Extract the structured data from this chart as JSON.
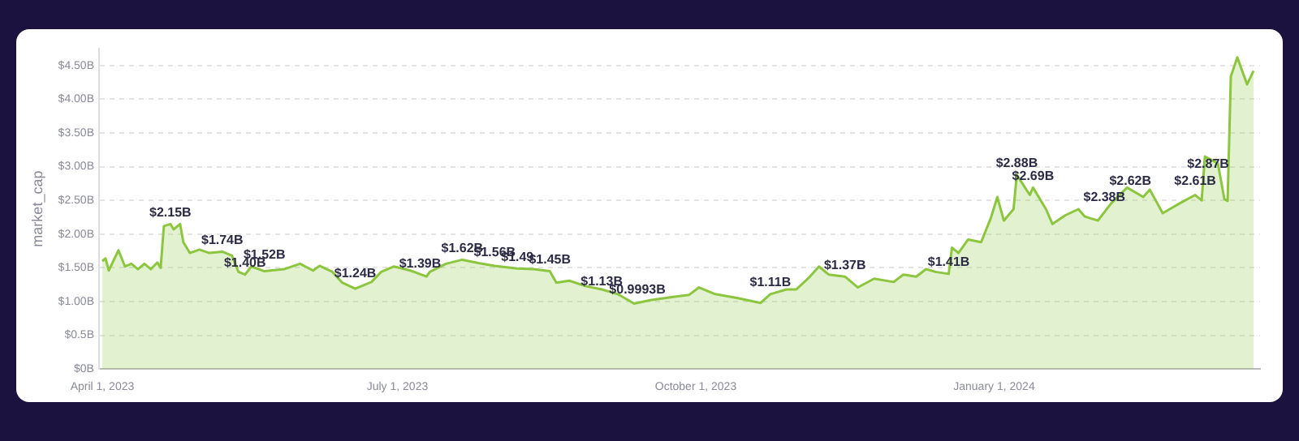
{
  "chart_data": {
    "type": "area",
    "ylabel": "market_cap",
    "x": [
      "2023-04-01",
      "2023-04-02",
      "2023-04-03",
      "2023-04-04",
      "2023-04-06",
      "2023-04-08",
      "2023-04-10",
      "2023-04-12",
      "2023-04-14",
      "2023-04-16",
      "2023-04-18",
      "2023-04-19",
      "2023-04-20",
      "2023-04-22",
      "2023-04-23",
      "2023-04-25",
      "2023-04-26",
      "2023-04-28",
      "2023-05-01",
      "2023-05-04",
      "2023-05-08",
      "2023-05-11",
      "2023-05-13",
      "2023-05-15",
      "2023-05-17",
      "2023-05-21",
      "2023-05-27",
      "2023-06-01",
      "2023-06-05",
      "2023-06-07",
      "2023-06-11",
      "2023-06-14",
      "2023-06-18",
      "2023-06-23",
      "2023-06-26",
      "2023-06-30",
      "2023-07-05",
      "2023-07-10",
      "2023-07-11",
      "2023-07-16",
      "2023-07-21",
      "2023-07-26",
      "2023-07-31",
      "2023-08-07",
      "2023-08-12",
      "2023-08-17",
      "2023-08-19",
      "2023-08-23",
      "2023-08-28",
      "2023-09-02",
      "2023-09-07",
      "2023-09-12",
      "2023-09-17",
      "2023-09-24",
      "2023-09-29",
      "2023-10-02",
      "2023-10-07",
      "2023-10-14",
      "2023-10-21",
      "2023-10-24",
      "2023-10-29",
      "2023-11-01",
      "2023-11-05",
      "2023-11-08",
      "2023-11-11",
      "2023-11-16",
      "2023-11-20",
      "2023-11-25",
      "2023-12-01",
      "2023-12-04",
      "2023-12-08",
      "2023-12-11",
      "2023-12-14",
      "2023-12-18",
      "2023-12-19",
      "2023-12-21",
      "2023-12-24",
      "2023-12-28",
      "2023-12-31",
      "2024-01-02",
      "2024-01-04",
      "2024-01-07",
      "2024-01-08",
      "2024-01-12",
      "2024-01-13",
      "2024-01-17",
      "2024-01-19",
      "2024-01-23",
      "2024-01-27",
      "2024-01-29",
      "2024-02-02",
      "2024-02-06",
      "2024-02-11",
      "2024-02-16",
      "2024-02-18",
      "2024-02-22",
      "2024-02-27",
      "2024-03-03",
      "2024-03-05",
      "2024-03-06",
      "2024-03-10",
      "2024-03-12",
      "2024-03-13",
      "2024-03-14",
      "2024-03-16",
      "2024-03-19",
      "2024-03-21"
    ],
    "series": [
      {
        "color": "#8cc63f",
        "values": [
          1.6,
          1.64,
          1.46,
          1.56,
          1.76,
          1.52,
          1.56,
          1.48,
          1.56,
          1.48,
          1.58,
          1.5,
          2.12,
          2.15,
          2.07,
          2.15,
          1.88,
          1.72,
          1.77,
          1.72,
          1.74,
          1.68,
          1.44,
          1.4,
          1.52,
          1.45,
          1.48,
          1.56,
          1.46,
          1.53,
          1.44,
          1.28,
          1.19,
          1.29,
          1.44,
          1.52,
          1.46,
          1.37,
          1.44,
          1.56,
          1.62,
          1.57,
          1.53,
          1.49,
          1.48,
          1.45,
          1.28,
          1.31,
          1.23,
          1.18,
          1.11,
          0.97,
          1.02,
          1.07,
          1.1,
          1.21,
          1.11,
          1.05,
          0.98,
          1.11,
          1.18,
          1.18,
          1.36,
          1.52,
          1.4,
          1.37,
          1.21,
          1.34,
          1.29,
          1.4,
          1.37,
          1.48,
          1.44,
          1.41,
          1.8,
          1.72,
          1.92,
          1.88,
          2.24,
          2.55,
          2.2,
          2.37,
          2.88,
          2.58,
          2.69,
          2.37,
          2.15,
          2.28,
          2.37,
          2.26,
          2.2,
          2.45,
          2.69,
          2.55,
          2.66,
          2.31,
          2.45,
          2.58,
          2.5,
          3.15,
          3.05,
          2.52,
          2.49,
          4.34,
          4.62,
          4.22,
          4.42
        ]
      }
    ],
    "xlim": [
      "2023-03-31",
      "2024-03-23"
    ],
    "xticks": [
      {
        "value": "2023-04-01",
        "label": "April 1, 2023"
      },
      {
        "value": "2023-07-01",
        "label": "July 1, 2023"
      },
      {
        "value": "2023-10-01",
        "label": "October 1, 2023"
      },
      {
        "value": "2024-01-01",
        "label": "January 1, 2024"
      }
    ],
    "ylim": [
      0,
      4.75
    ],
    "yticks": [
      {
        "value": 0,
        "label": "$0B"
      },
      {
        "value": 0.5,
        "label": "$0.5B"
      },
      {
        "value": 1,
        "label": "$1.00B"
      },
      {
        "value": 1.5,
        "label": "$1.50B"
      },
      {
        "value": 2,
        "label": "$2.00B"
      },
      {
        "value": 2.5,
        "label": "$2.50B"
      },
      {
        "value": 3,
        "label": "$3.00B"
      },
      {
        "value": 3.5,
        "label": "$3.50B"
      },
      {
        "value": 4,
        "label": "$4.00B"
      },
      {
        "value": 4.5,
        "label": "$4.50B"
      }
    ],
    "grid": "y",
    "legend": false,
    "marker": "none",
    "annotations": [
      {
        "text": "$2.15B",
        "x": "2023-04-22",
        "y": 2.15
      },
      {
        "text": "$1.74B",
        "x": "2023-05-08",
        "y": 1.74
      },
      {
        "text": "$1.40B",
        "x": "2023-05-15",
        "y": 1.4
      },
      {
        "text": "$1.52B",
        "x": "2023-05-21",
        "y": 1.52
      },
      {
        "text": "$1.24B",
        "x": "2023-06-18",
        "y": 1.24
      },
      {
        "text": "$1.39B",
        "x": "2023-07-08",
        "y": 1.39
      },
      {
        "text": "$1.62B",
        "x": "2023-07-21",
        "y": 1.62
      },
      {
        "text": "$1.56B",
        "x": "2023-07-31",
        "y": 1.56
      },
      {
        "text": "$1.49",
        "x": "2023-08-07",
        "y": 1.49
      },
      {
        "text": "$1.45B",
        "x": "2023-08-17",
        "y": 1.45
      },
      {
        "text": "$1.13B",
        "x": "2023-09-02",
        "y": 1.13
      },
      {
        "text": "$0.9993B",
        "x": "2023-09-13",
        "y": 0.9993
      },
      {
        "text": "$1.11B",
        "x": "2023-10-24",
        "y": 1.11
      },
      {
        "text": "$1.37B",
        "x": "2023-11-16",
        "y": 1.37
      },
      {
        "text": "$1.41B",
        "x": "2023-12-18",
        "y": 1.41
      },
      {
        "text": "$2.88B",
        "x": "2024-01-08",
        "y": 2.88
      },
      {
        "text": "$2.69B",
        "x": "2024-01-13",
        "y": 2.69
      },
      {
        "text": "$2.38B",
        "x": "2024-02-04",
        "y": 2.38
      },
      {
        "text": "$2.62B",
        "x": "2024-02-12",
        "y": 2.62
      },
      {
        "text": "$2.61B",
        "x": "2024-03-03",
        "y": 2.61
      },
      {
        "text": "$2.87B",
        "x": "2024-03-07",
        "y": 2.87
      }
    ]
  }
}
